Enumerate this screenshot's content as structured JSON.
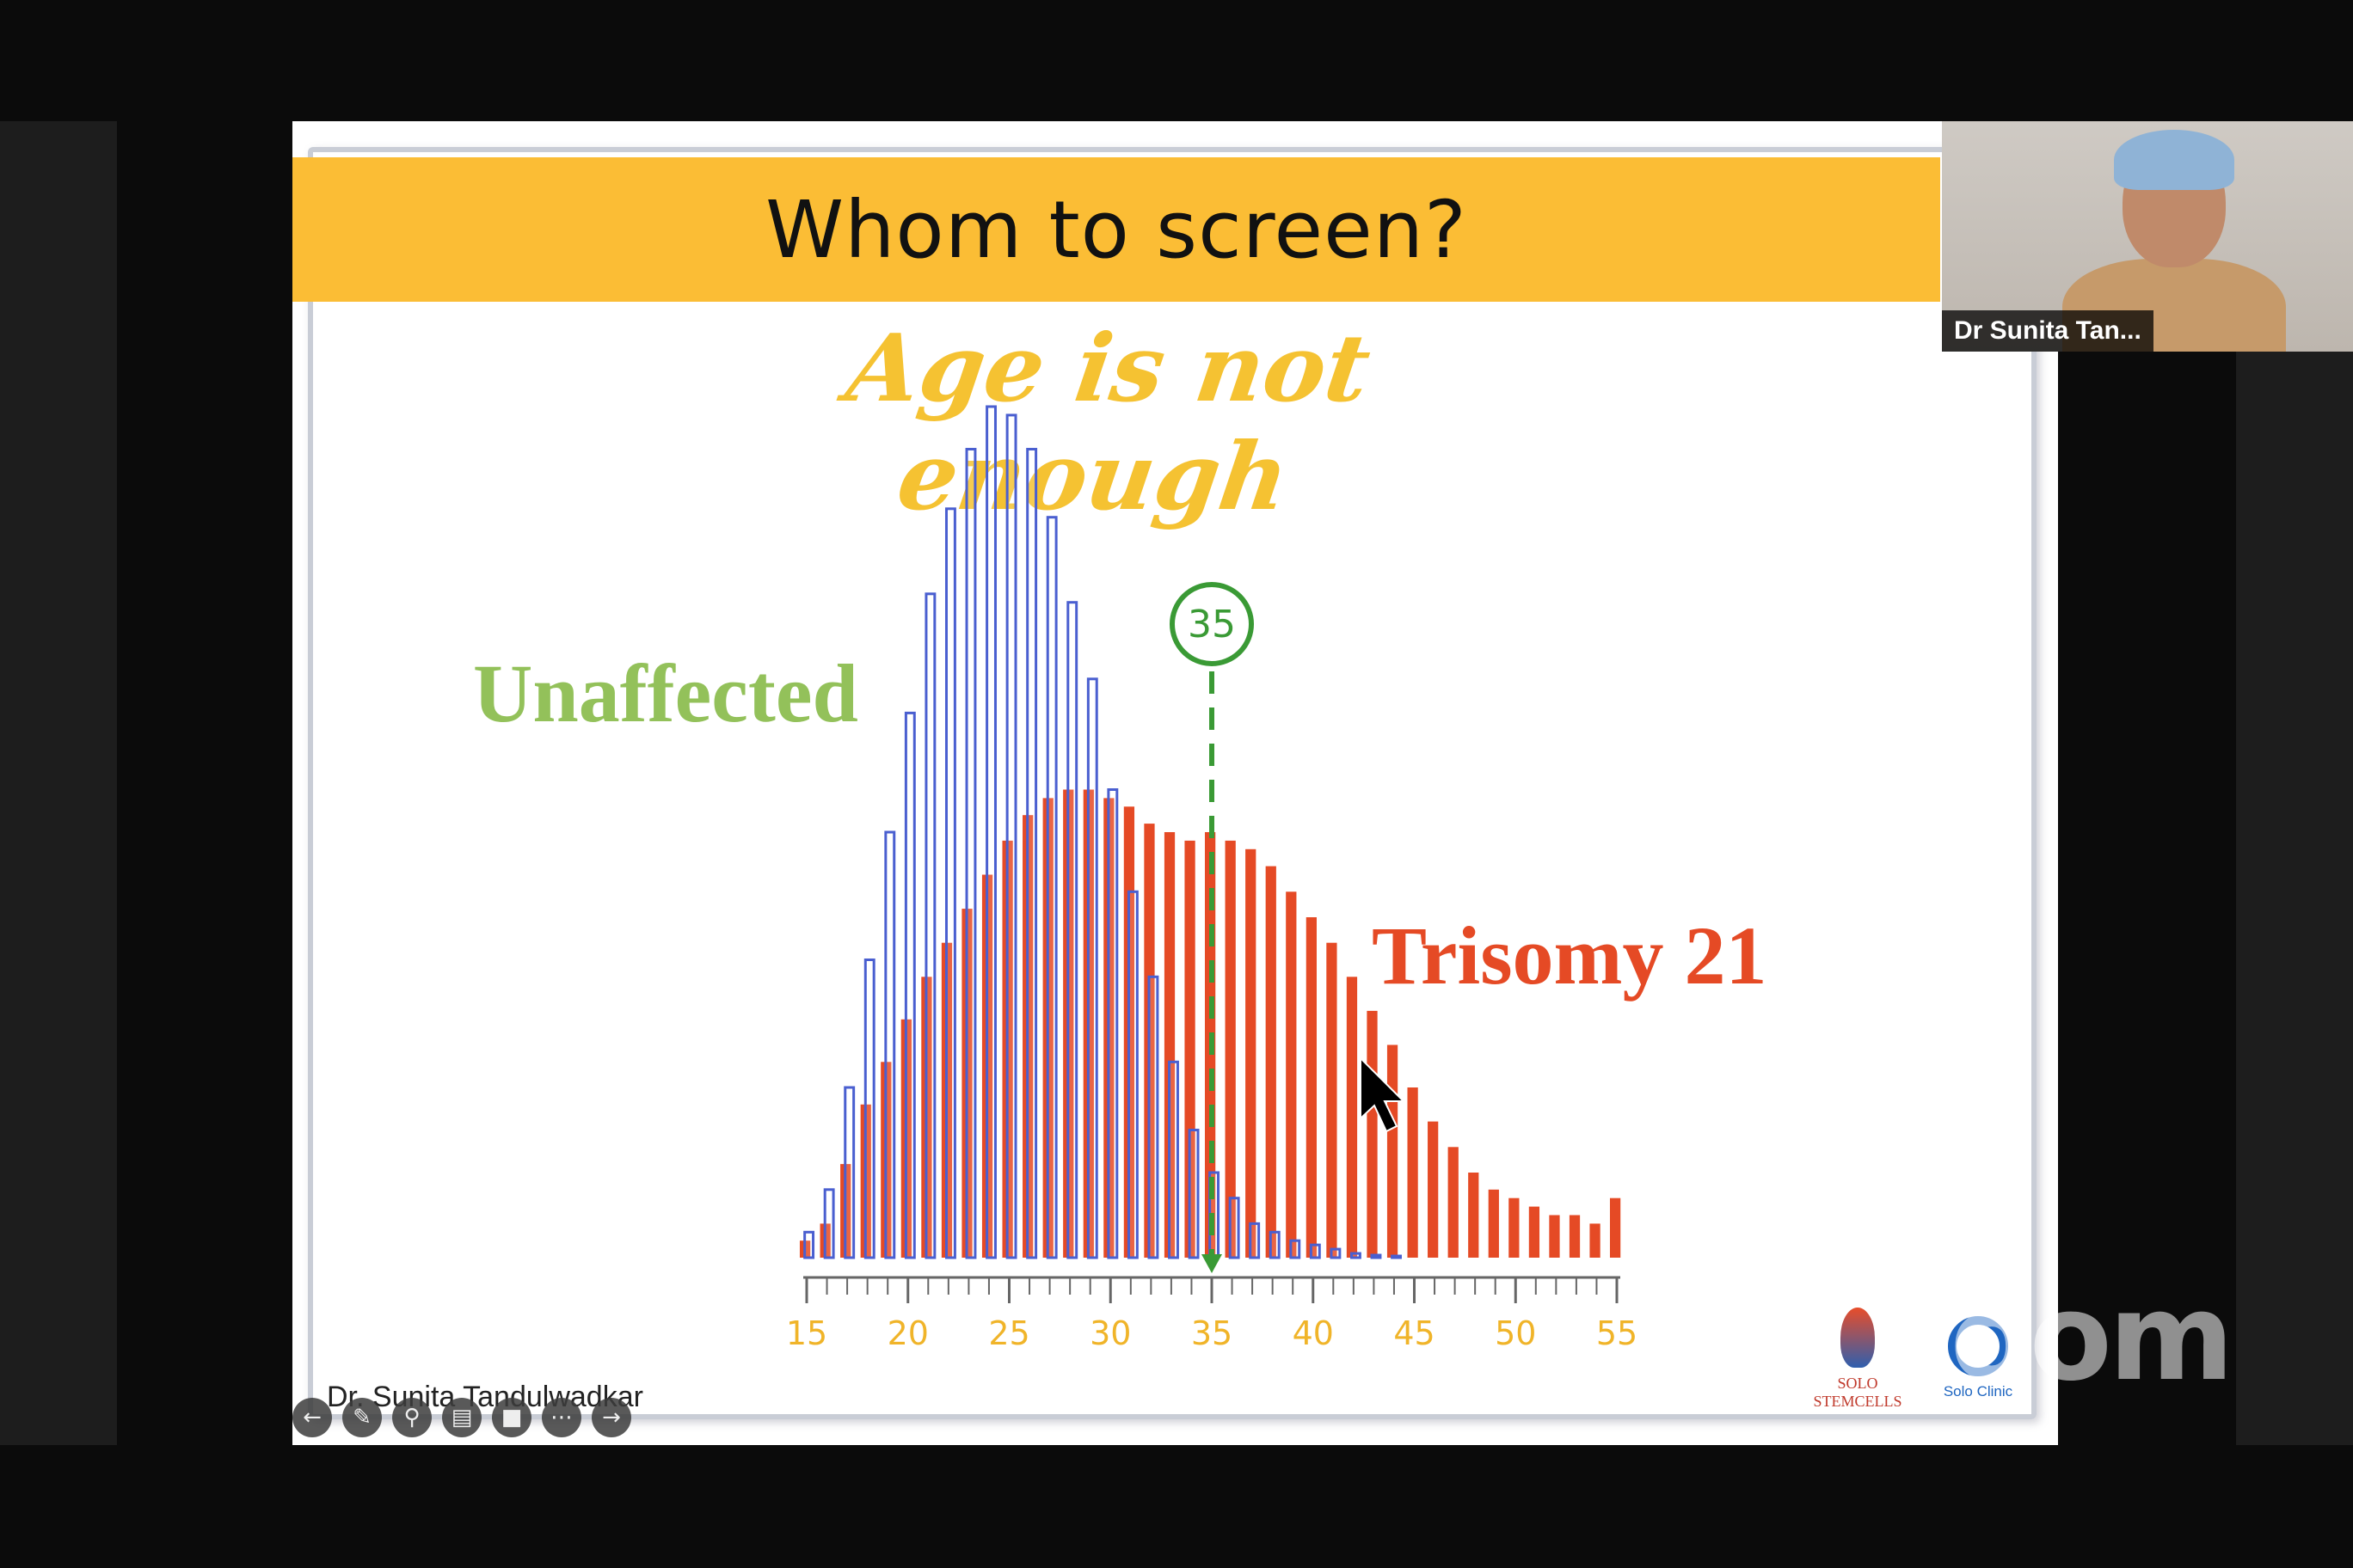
{
  "slide": {
    "title": "Whom to screen?",
    "subtitle": "Age is not enough",
    "label_unaffected": "Unaffected",
    "label_trisomy": "Trisomy 21",
    "marker_label": "35",
    "author": "Dr. Sunita Tandulwadkar"
  },
  "logos": {
    "solo_stemcells": "SOLO STEMCELLS",
    "solo_clinic": "Solo Clinic"
  },
  "video": {
    "participant_name": "Dr Sunita Tan..."
  },
  "watermark": "zoom",
  "toolbar": {
    "icons": [
      "back-icon",
      "pen-icon",
      "zoom-icon",
      "captions-icon",
      "video-icon",
      "more-icon",
      "forward-icon"
    ]
  },
  "colors": {
    "title_bar": "#fbbd35",
    "subtitle": "#f5c232",
    "unaffected": "#93c15a",
    "unaffected_bars": "#4a5fd0",
    "trisomy": "#e54a25",
    "marker": "#3a9a35",
    "axis_labels": "#f0b429"
  },
  "chart_data": {
    "type": "bar",
    "x_ticks": [
      15,
      20,
      25,
      30,
      35,
      40,
      45,
      50,
      55
    ],
    "xlim": [
      15,
      55
    ],
    "marker_x": 35,
    "series": [
      {
        "name": "Unaffected",
        "style": "outline",
        "x": [
          15,
          16,
          17,
          18,
          19,
          20,
          21,
          22,
          23,
          24,
          25,
          26,
          27,
          28,
          29,
          30,
          31,
          32,
          33,
          34,
          35,
          36,
          37,
          38,
          39,
          40,
          41,
          42,
          43,
          44
        ],
        "values": [
          3,
          8,
          20,
          35,
          50,
          64,
          78,
          88,
          95,
          100,
          99,
          95,
          87,
          77,
          68,
          55,
          43,
          33,
          23,
          15,
          10,
          7,
          4,
          3,
          2,
          1.5,
          1,
          0.5,
          0.3,
          0.2
        ]
      },
      {
        "name": "Trisomy 21",
        "style": "filled",
        "x": [
          15,
          16,
          17,
          18,
          19,
          20,
          21,
          22,
          23,
          24,
          25,
          26,
          27,
          28,
          29,
          30,
          31,
          32,
          33,
          34,
          35,
          36,
          37,
          38,
          39,
          40,
          41,
          42,
          43,
          44,
          45,
          46,
          47,
          48,
          49,
          50,
          51,
          52,
          53,
          54,
          55
        ],
        "values": [
          2,
          4,
          11,
          18,
          23,
          28,
          33,
          37,
          41,
          45,
          49,
          52,
          54,
          55,
          55,
          54,
          53,
          51,
          50,
          49,
          50,
          49,
          48,
          46,
          43,
          40,
          37,
          33,
          29,
          25,
          20,
          16,
          13,
          10,
          8,
          7,
          6,
          5,
          5,
          4,
          7
        ]
      }
    ]
  }
}
